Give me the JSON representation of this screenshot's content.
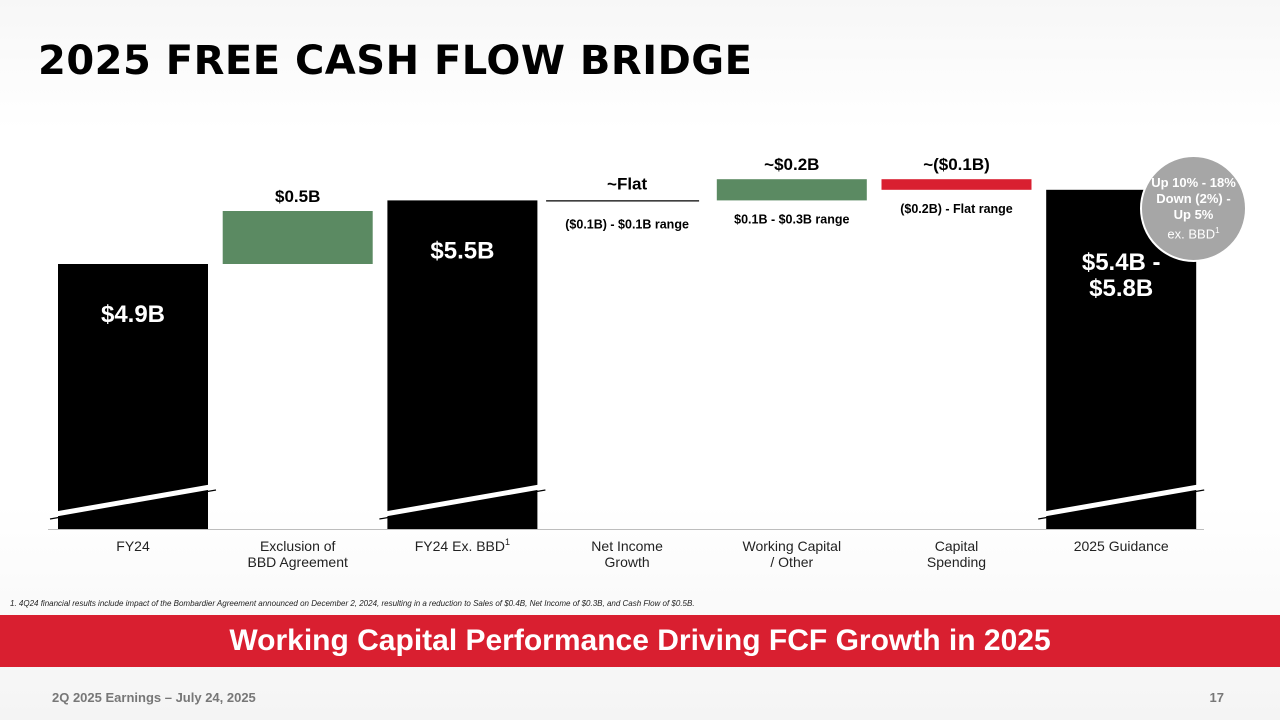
{
  "title": "2025 FREE CASH FLOW BRIDGE",
  "chart_data": {
    "type": "waterfall",
    "unit": "$B",
    "axis_broken": true,
    "categories": [
      "FY24",
      "Exclusion of\nBBD Agreement",
      "FY24 Ex. BBD",
      "Net Income\nGrowth",
      "Working Capital\n/ Other",
      "Capital\nSpending",
      "2025 Guidance"
    ],
    "category_superscripts": [
      "",
      "",
      "1",
      "",
      "",
      "",
      ""
    ],
    "steps": [
      {
        "kind": "total",
        "value": 4.9,
        "label": "$4.9B",
        "range": ""
      },
      {
        "kind": "delta",
        "value": 0.5,
        "label": "$0.5B",
        "range": ""
      },
      {
        "kind": "total",
        "value": 5.5,
        "label": "$5.5B",
        "range": ""
      },
      {
        "kind": "delta",
        "value": 0.0,
        "label": "~Flat",
        "range": "($0.1B) - $0.1B range"
      },
      {
        "kind": "delta",
        "value": 0.2,
        "label": "~$0.2B",
        "range": "$0.1B - $0.3B range"
      },
      {
        "kind": "delta",
        "value": -0.1,
        "label": "~($0.1B)",
        "range": "($0.2B) - Flat range"
      },
      {
        "kind": "total",
        "value": 5.6,
        "low": 5.4,
        "high": 5.8,
        "label": "$5.4B -\n$5.8B",
        "range": ""
      }
    ],
    "colors": {
      "total": "#000000",
      "increase": "#5b8a62",
      "decrease": "#d91f30",
      "flat": "#000000"
    }
  },
  "badge": {
    "line1": "Up 10% - 18%",
    "line2": "Down (2%) -",
    "line3": "Up 5%",
    "line4": "ex. BBD",
    "line4_sup": "1"
  },
  "footnote": {
    "num": "1.",
    "text": " 4Q24 financial results include impact of the Bombardier Agreement announced on December 2, 2024, resulting in a reduction to Sales of $0.4B, Net Income of $0.3B, and Cash Flow of $0.5B."
  },
  "banner": "Working Capital Performance Driving FCF Growth in 2025",
  "footer": {
    "left": "2Q 2025 Earnings – July 24, 2025",
    "page": "17"
  }
}
